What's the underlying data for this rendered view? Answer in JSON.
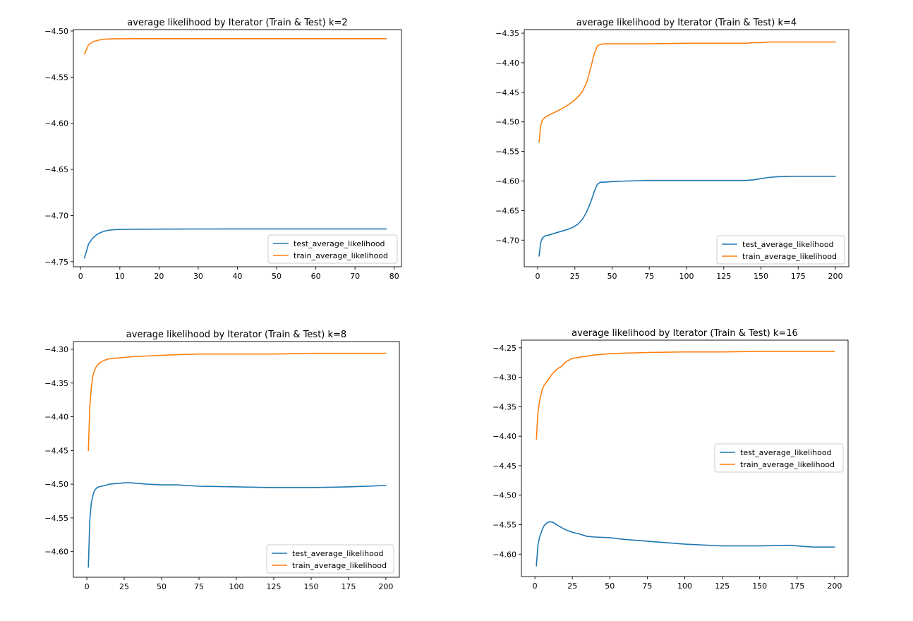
{
  "figure": {
    "colors": {
      "test": "#1f77b4",
      "train": "#ff7f0e"
    }
  },
  "chart_data": [
    {
      "type": "line",
      "title": "average likelihood by Iterator (Train & Test) k=2",
      "xlim": [
        -1.85,
        81.85
      ],
      "ylim": [
        -4.7555,
        -4.4985
      ],
      "xticks": [
        0,
        10,
        20,
        30,
        40,
        50,
        60,
        70,
        80
      ],
      "yticks": [
        -4.75,
        -4.7,
        -4.65,
        -4.6,
        -4.55,
        -4.5
      ],
      "legend": "lower right",
      "grid": false,
      "series": [
        {
          "name": "test_average_likelihood",
          "color": "#1f77b4",
          "x": [
            1,
            2,
            3,
            4,
            5,
            6,
            7,
            8,
            10,
            15,
            20,
            30,
            40,
            50,
            60,
            70,
            78
          ],
          "y": [
            -4.746,
            -4.731,
            -4.725,
            -4.721,
            -4.7185,
            -4.717,
            -4.716,
            -4.7155,
            -4.715,
            -4.7148,
            -4.7147,
            -4.7146,
            -4.7145,
            -4.7145,
            -4.7145,
            -4.7145,
            -4.7145
          ]
        },
        {
          "name": "train_average_likelihood",
          "color": "#ff7f0e",
          "x": [
            1,
            2,
            3,
            4,
            5,
            6,
            7,
            8,
            10,
            15,
            20,
            30,
            40,
            50,
            60,
            70,
            78
          ],
          "y": [
            -4.525,
            -4.515,
            -4.512,
            -4.5105,
            -4.5095,
            -4.509,
            -4.5087,
            -4.5085,
            -4.5084,
            -4.5083,
            -4.5083,
            -4.5083,
            -4.5083,
            -4.5083,
            -4.5083,
            -4.5083,
            -4.5083
          ]
        }
      ]
    },
    {
      "type": "line",
      "title": "average likelihood by Iterator (Train & Test) k=4",
      "xlim": [
        -9,
        209
      ],
      "ylim": [
        -4.745,
        -4.344
      ],
      "xticks": [
        0,
        25,
        50,
        75,
        100,
        125,
        150,
        175,
        200
      ],
      "yticks": [
        -4.7,
        -4.65,
        -4.6,
        -4.55,
        -4.5,
        -4.45,
        -4.4,
        -4.35
      ],
      "legend": "lower right",
      "grid": false,
      "series": [
        {
          "name": "test_average_likelihood",
          "color": "#1f77b4",
          "x": [
            1,
            2,
            3,
            5,
            8,
            12,
            16,
            20,
            24,
            27,
            30,
            33,
            36,
            38,
            40,
            42,
            45,
            50,
            60,
            75,
            100,
            120,
            140,
            145,
            150,
            155,
            160,
            170,
            200
          ],
          "y": [
            -4.727,
            -4.705,
            -4.697,
            -4.693,
            -4.691,
            -4.688,
            -4.685,
            -4.682,
            -4.678,
            -4.673,
            -4.665,
            -4.652,
            -4.633,
            -4.618,
            -4.606,
            -4.602,
            -4.602,
            -4.601,
            -4.6,
            -4.599,
            -4.599,
            -4.599,
            -4.599,
            -4.598,
            -4.596,
            -4.594,
            -4.593,
            -4.592,
            -4.592
          ]
        },
        {
          "name": "train_average_likelihood",
          "color": "#ff7f0e",
          "x": [
            1,
            2,
            3,
            5,
            8,
            12,
            16,
            20,
            24,
            27,
            30,
            33,
            36,
            38,
            40,
            42,
            45,
            50,
            60,
            75,
            100,
            120,
            140,
            145,
            150,
            155,
            160,
            170,
            200
          ],
          "y": [
            -4.534,
            -4.508,
            -4.498,
            -4.492,
            -4.488,
            -4.483,
            -4.478,
            -4.472,
            -4.465,
            -4.458,
            -4.449,
            -4.433,
            -4.405,
            -4.385,
            -4.372,
            -4.369,
            -4.368,
            -4.368,
            -4.368,
            -4.368,
            -4.367,
            -4.367,
            -4.367,
            -4.366,
            -4.366,
            -4.365,
            -4.365,
            -4.365,
            -4.365
          ]
        }
      ]
    },
    {
      "type": "line",
      "title": "average likelihood by Iterator (Train & Test) k=8",
      "xlim": [
        -9,
        209
      ],
      "ylim": [
        -4.638,
        -4.2885
      ],
      "xticks": [
        0,
        25,
        50,
        75,
        100,
        125,
        150,
        175,
        200
      ],
      "yticks": [
        -4.6,
        -4.55,
        -4.5,
        -4.45,
        -4.4,
        -4.35,
        -4.3
      ],
      "legend": "lower right",
      "grid": false,
      "series": [
        {
          "name": "test_average_likelihood",
          "color": "#1f77b4",
          "x": [
            1,
            2,
            3,
            4,
            5,
            6,
            7,
            8,
            10,
            12,
            15,
            20,
            25,
            30,
            35,
            40,
            50,
            60,
            75,
            100,
            125,
            140,
            150,
            175,
            200
          ],
          "y": [
            -4.623,
            -4.553,
            -4.528,
            -4.517,
            -4.51,
            -4.507,
            -4.505,
            -4.504,
            -4.503,
            -4.502,
            -4.5,
            -4.499,
            -4.498,
            -4.498,
            -4.499,
            -4.5,
            -4.501,
            -4.501,
            -4.503,
            -4.504,
            -4.505,
            -4.505,
            -4.505,
            -4.504,
            -4.502
          ]
        },
        {
          "name": "train_average_likelihood",
          "color": "#ff7f0e",
          "x": [
            1,
            2,
            3,
            4,
            5,
            6,
            8,
            10,
            12,
            15,
            20,
            25,
            30,
            40,
            50,
            60,
            75,
            100,
            125,
            150,
            175,
            200
          ],
          "y": [
            -4.45,
            -4.385,
            -4.357,
            -4.34,
            -4.332,
            -4.327,
            -4.321,
            -4.318,
            -4.316,
            -4.314,
            -4.313,
            -4.312,
            -4.311,
            -4.31,
            -4.309,
            -4.308,
            -4.307,
            -4.307,
            -4.307,
            -4.306,
            -4.306,
            -4.306
          ]
        }
      ]
    },
    {
      "type": "line",
      "title": "average likelihood by Iterator (Train & Test) k=16",
      "xlim": [
        -9,
        209
      ],
      "ylim": [
        -4.638,
        -4.237
      ],
      "xticks": [
        0,
        25,
        50,
        75,
        100,
        125,
        150,
        175,
        200
      ],
      "yticks": [
        -4.6,
        -4.55,
        -4.5,
        -4.45,
        -4.4,
        -4.35,
        -4.3,
        -4.25
      ],
      "legend": "center right",
      "grid": false,
      "series": [
        {
          "name": "test_average_likelihood",
          "color": "#1f77b4",
          "x": [
            1,
            2,
            3,
            4,
            5,
            6,
            8,
            10,
            12,
            15,
            20,
            25,
            30,
            35,
            40,
            50,
            60,
            75,
            100,
            125,
            150,
            170,
            175,
            185,
            200
          ],
          "y": [
            -4.62,
            -4.585,
            -4.572,
            -4.565,
            -4.558,
            -4.552,
            -4.547,
            -4.545,
            -4.546,
            -4.551,
            -4.558,
            -4.563,
            -4.566,
            -4.57,
            -4.571,
            -4.572,
            -4.575,
            -4.578,
            -4.583,
            -4.586,
            -4.586,
            -4.585,
            -4.586,
            -4.588,
            -4.588
          ]
        },
        {
          "name": "train_average_likelihood",
          "color": "#ff7f0e",
          "x": [
            1,
            2,
            3,
            4,
            5,
            6,
            8,
            10,
            12,
            14,
            16,
            18,
            20,
            22,
            25,
            30,
            40,
            50,
            60,
            75,
            100,
            125,
            150,
            175,
            200
          ],
          "y": [
            -4.405,
            -4.36,
            -4.342,
            -4.33,
            -4.32,
            -4.314,
            -4.307,
            -4.3,
            -4.293,
            -4.288,
            -4.284,
            -4.281,
            -4.275,
            -4.272,
            -4.268,
            -4.266,
            -4.262,
            -4.26,
            -4.259,
            -4.258,
            -4.257,
            -4.257,
            -4.256,
            -4.256,
            -4.256
          ]
        }
      ]
    }
  ]
}
